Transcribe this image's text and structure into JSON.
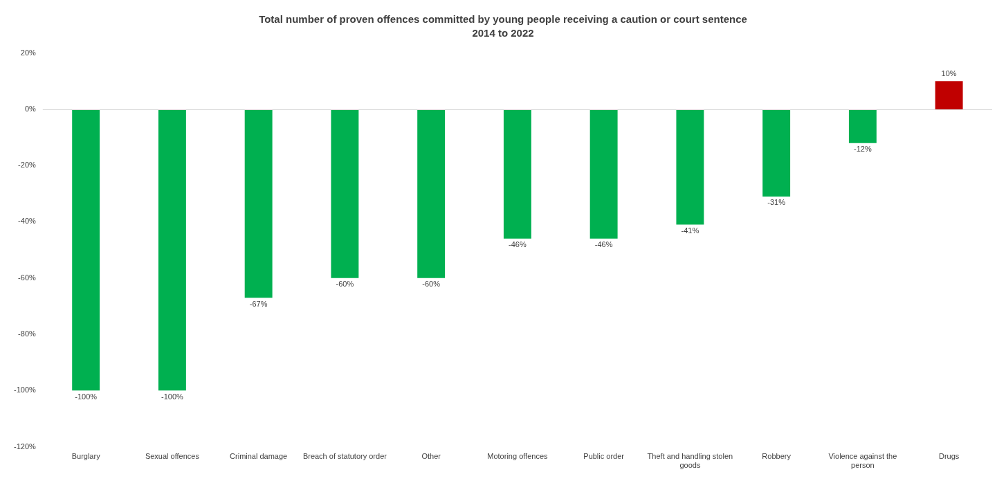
{
  "chart_data": {
    "type": "bar",
    "title": "Total number of proven offences committed by young people receiving a caution or court sentence",
    "subtitle": "2014 to 2022",
    "categories": [
      "Burglary",
      "Sexual offences",
      "Criminal damage",
      "Breach of statutory order",
      "Other",
      "Motoring offences",
      "Public order",
      "Theft and handling stolen goods",
      "Robbery",
      "Violence against the person",
      "Drugs"
    ],
    "values": [
      -100,
      -100,
      -67,
      -60,
      -60,
      -46,
      -46,
      -41,
      -31,
      -12,
      10
    ],
    "colors": [
      "#00b050",
      "#00b050",
      "#00b050",
      "#00b050",
      "#00b050",
      "#00b050",
      "#00b050",
      "#00b050",
      "#00b050",
      "#00b050",
      "#c00000"
    ],
    "value_labels": [
      "-100%",
      "-100%",
      "-67%",
      "-60%",
      "-60%",
      "-46%",
      "-46%",
      "-41%",
      "-31%",
      "-12%",
      "10%"
    ],
    "ylim": [
      -120,
      20
    ],
    "yticks": [
      {
        "value": -120,
        "label": "-120%"
      },
      {
        "value": -100,
        "label": "-100%"
      },
      {
        "value": -80,
        "label": "-80%"
      },
      {
        "value": -60,
        "label": "-60%"
      },
      {
        "value": -40,
        "label": "-40%"
      },
      {
        "value": -20,
        "label": "-20%"
      },
      {
        "value": 0,
        "label": "0%"
      },
      {
        "value": 20,
        "label": "20%"
      }
    ],
    "ref_lines": [
      {
        "axis": "y",
        "value": 0,
        "color": "#d9d9d9"
      }
    ],
    "grid": false,
    "legend": false
  }
}
